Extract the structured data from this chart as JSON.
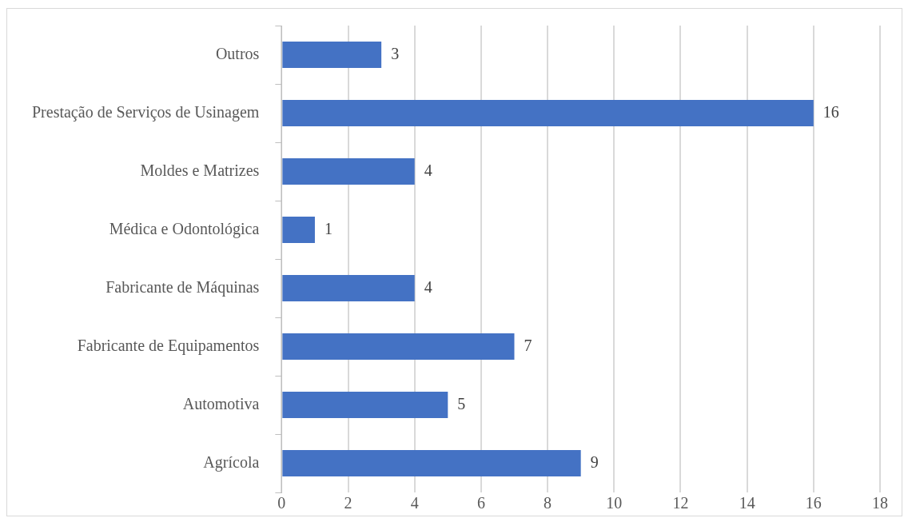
{
  "chart_data": {
    "type": "bar",
    "orientation": "horizontal",
    "categories": [
      "Outros",
      "Prestação de Serviços de Usinagem",
      "Moldes e Matrizes",
      "Médica e Odontológica",
      "Fabricante de Máquinas",
      "Fabricante de Equipamentos",
      "Automotiva",
      "Agrícola"
    ],
    "values": [
      3,
      16,
      4,
      1,
      4,
      7,
      5,
      9
    ],
    "color": "#4472c4",
    "xlim": [
      0,
      18
    ],
    "xticks": [
      0,
      2,
      4,
      6,
      8,
      10,
      12,
      14,
      16,
      18
    ],
    "grid": "x",
    "data_labels": true,
    "legend": false
  }
}
